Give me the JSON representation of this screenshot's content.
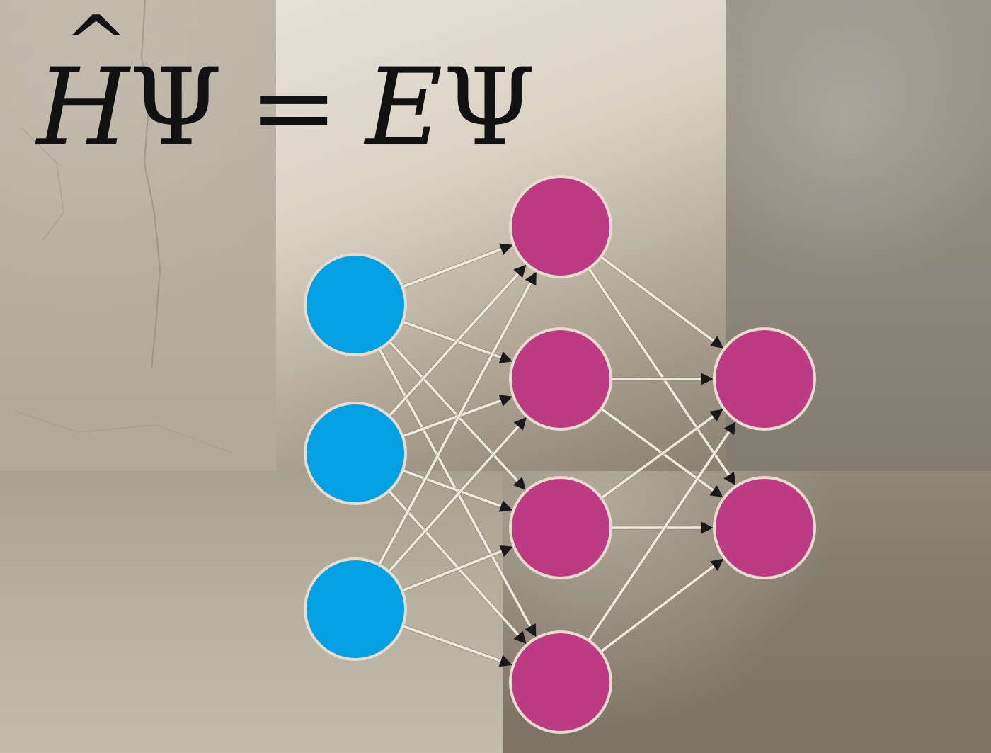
{
  "equation": {
    "operator": "H",
    "hat": "^",
    "wavefunction": "Ψ",
    "equals": "=",
    "energy": "E",
    "wavefunction_right": "Ψ"
  },
  "colors": {
    "input_node": "#03a1e4",
    "hidden_node": "#bd3b82",
    "output_node": "#bd3b82",
    "node_border": "#e7dccf",
    "edge": "#efe9de",
    "arrowhead": "#1a1a1a",
    "equation_text": "#111111"
  },
  "network": {
    "layers": [
      {
        "name": "input",
        "node_count": 3
      },
      {
        "name": "hidden",
        "node_count": 4
      },
      {
        "name": "output",
        "node_count": 2
      }
    ],
    "connectivity": "fully-connected"
  }
}
